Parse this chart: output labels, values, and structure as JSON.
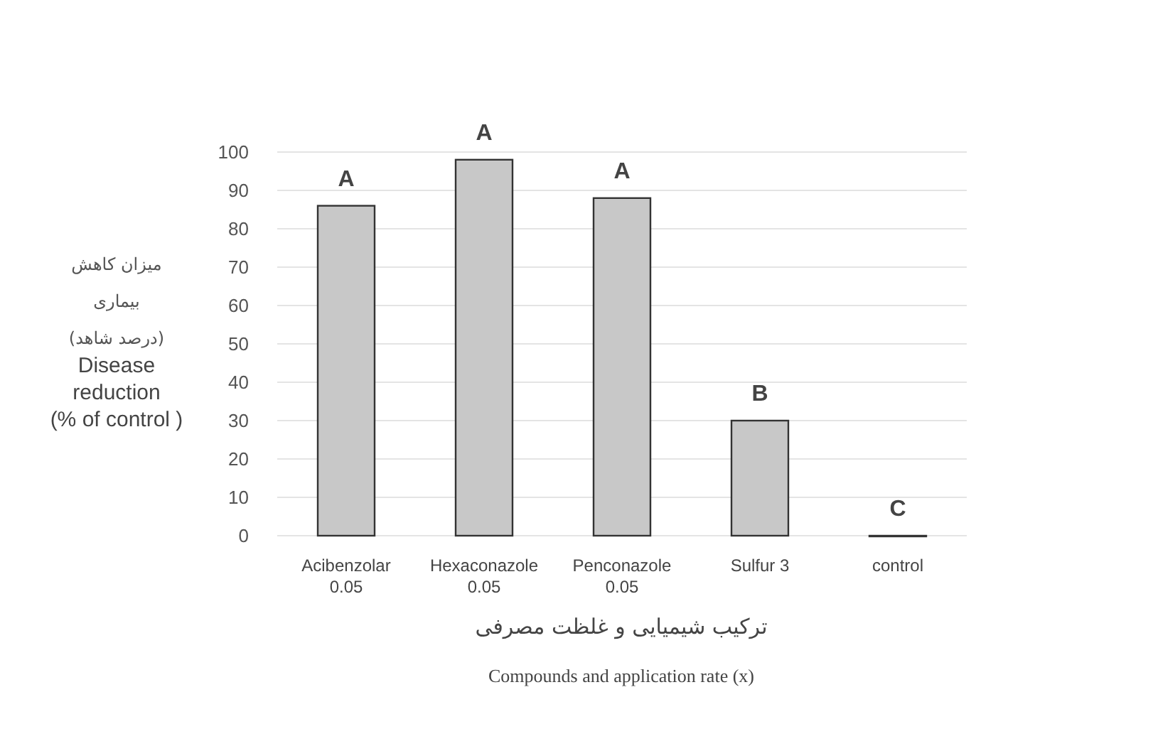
{
  "chart_data": {
    "type": "bar",
    "ylabel": "Disease reduction (% of control )",
    "xlabel": "Compounds and application rate (x)",
    "categories": [
      "Acibenzolar 0.05",
      "Hexaconazole 0.05",
      "Penconazole 0.05",
      "Sulfur 3",
      "control"
    ],
    "values": [
      86,
      98,
      88,
      30,
      0
    ],
    "color": "#c8c8c8",
    "ylim": [
      0,
      100
    ],
    "yticks": [
      0,
      10,
      20,
      30,
      40,
      50,
      60,
      70,
      80,
      90,
      100
    ],
    "grid": "y",
    "annotations": [
      "میزان کاهش بیماری (درصد شاهد)",
      "ترکیب شیمیایی و غلظت مصرفی",
      {
        "text": "A",
        "x": "Acibenzolar 0.05",
        "y": 86
      },
      {
        "text": "A",
        "x": "Hexaconazole 0.05",
        "y": 98
      },
      {
        "text": "A",
        "x": "Penconazole 0.05",
        "y": 88
      },
      {
        "text": "B",
        "x": "Sulfur 3",
        "y": 30
      },
      {
        "text": "C",
        "x": "control",
        "y": 0
      }
    ]
  }
}
